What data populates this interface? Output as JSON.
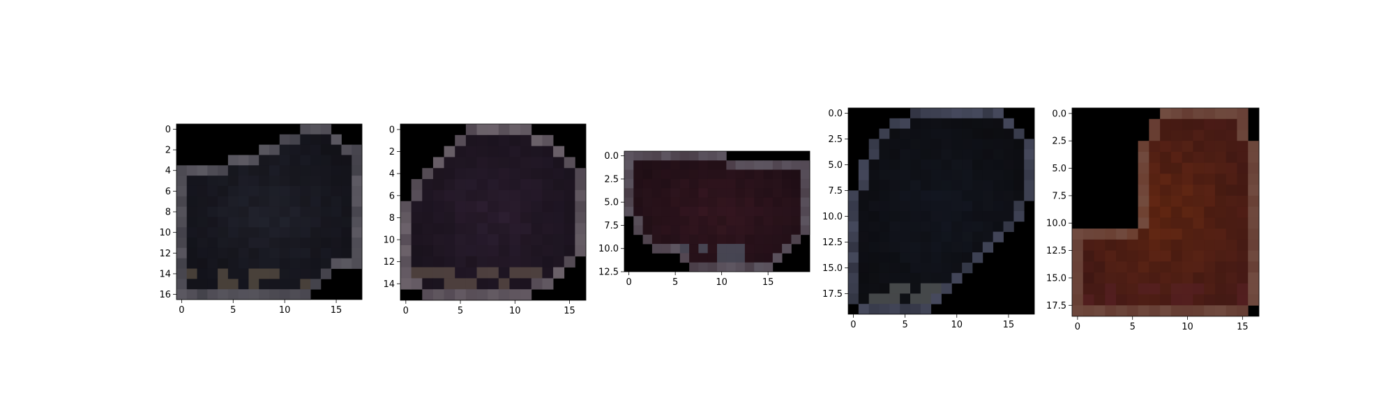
{
  "chart_data": [
    {
      "type": "heatmap",
      "rows": 17,
      "cols": 18,
      "xlim": [
        -0.5,
        17.5
      ],
      "ylim": [
        16.5,
        -0.5
      ],
      "x_ticks": [
        0,
        5,
        10,
        15
      ],
      "x_tick_labels": [
        "0",
        "5",
        "10",
        "15"
      ],
      "y_ticks": [
        0,
        2,
        4,
        6,
        8,
        10,
        12,
        14,
        16
      ],
      "y_tick_labels": [
        "0",
        "2",
        "4",
        "6",
        "8",
        "10",
        "12",
        "14",
        "16"
      ],
      "mask": [
        "000000000000111000",
        "000000000011111100",
        "000000001111111111",
        "000001111111111111",
        "111111111111111111",
        "111111111111111111",
        "111111111111111111",
        "111111111111111111",
        "111111111111111111",
        "111111111111111111",
        "111111111111111111",
        "111111111111111111",
        "111111111111111111",
        "111111111111111111",
        "111111111111111000",
        "111111111111110000",
        "111111111111100000"
      ],
      "colors": {
        "base": "#14141c",
        "center": "#232530",
        "dark": "#0d0b0e",
        "edge": "#6a6770",
        "accent": "#6b5e4e",
        "background": "#000000"
      }
    },
    {
      "type": "heatmap",
      "rows": 16,
      "cols": 17,
      "xlim": [
        -0.5,
        16.5
      ],
      "ylim": [
        15.5,
        -0.5
      ],
      "x_ticks": [
        0,
        5,
        10,
        15
      ],
      "x_tick_labels": [
        "0",
        "5",
        "10",
        "15"
      ],
      "y_ticks": [
        0,
        2,
        4,
        6,
        8,
        10,
        12,
        14
      ],
      "y_tick_labels": [
        "0",
        "2",
        "4",
        "6",
        "8",
        "10",
        "12",
        "14"
      ],
      "mask": [
        "00000011111100000",
        "00000111111111000",
        "00001111111111100",
        "00011111111111110",
        "00111111111111111",
        "01111111111111111",
        "01111111111111111",
        "11111111111111111",
        "11111111111111111",
        "11111111111111111",
        "11111111111111111",
        "11111111111111111",
        "11111111111111110",
        "11111111111111100",
        "11111111111111000",
        "00111111111100000"
      ],
      "colors": {
        "base": "#1c1420",
        "center": "#2e1f33",
        "dark": "#120c12",
        "edge": "#7a7078",
        "accent": "#6e5d52",
        "background": "#000000"
      }
    },
    {
      "type": "heatmap",
      "rows": 13,
      "cols": 20,
      "xlim": [
        -0.5,
        19.5
      ],
      "ylim": [
        12.5,
        -0.5
      ],
      "x_ticks": [
        0,
        5,
        10,
        15
      ],
      "x_tick_labels": [
        "0",
        "5",
        "10",
        "15"
      ],
      "y_ticks": [
        0,
        2.5,
        5,
        7.5,
        10,
        12.5
      ],
      "y_tick_labels": [
        "0.0",
        "2.5",
        "5.0",
        "7.5",
        "10.0",
        "12.5"
      ],
      "mask": [
        "11111111111000000000",
        "11111111111111111111",
        "11111111111111111111",
        "11111111111111111111",
        "11111111111111111111",
        "11111111111111111111",
        "11111111111111111111",
        "01111111111111111111",
        "01111111111111111111",
        "00111111111111111110",
        "00011111111111111100",
        "00000011111111111000",
        "00000001111111110000"
      ],
      "colors": {
        "base": "#231018",
        "center": "#3a1822",
        "dark": "#160a10",
        "edge": "#6a6470",
        "accent": "#5d6878",
        "background": "#000000"
      }
    },
    {
      "type": "heatmap",
      "rows": 20,
      "cols": 18,
      "xlim": [
        -0.5,
        17.5
      ],
      "ylim": [
        19.5,
        -0.5
      ],
      "x_ticks": [
        0,
        5,
        10,
        15
      ],
      "x_tick_labels": [
        "0",
        "5",
        "10",
        "15"
      ],
      "y_ticks": [
        0,
        2.5,
        5,
        7.5,
        10,
        12.5,
        15,
        17.5
      ],
      "y_tick_labels": [
        "0.0",
        "2.5",
        "5.0",
        "7.5",
        "10.0",
        "12.5",
        "15.0",
        "17.5"
      ],
      "mask": [
        "000000111111111000",
        "000011111111111100",
        "000111111111111110",
        "001111111111111111",
        "001111111111111111",
        "011111111111111111",
        "011111111111111111",
        "011111111111111111",
        "111111111111111111",
        "111111111111111110",
        "111111111111111110",
        "111111111111111100",
        "111111111111111000",
        "111111111111110000",
        "111111111111100000",
        "111111111111000000",
        "111111111110000000",
        "111111111100000000",
        "111111111000000000",
        "011111110000000000"
      ],
      "colors": {
        "base": "#0e0f14",
        "center": "#141823",
        "dark": "#08080a",
        "edge": "#50546a",
        "accent": "#6a6e6e",
        "background": "#000000"
      }
    },
    {
      "type": "heatmap",
      "rows": 19,
      "cols": 17,
      "xlim": [
        -0.5,
        16.5
      ],
      "ylim": [
        18.5,
        -0.5
      ],
      "x_ticks": [
        0,
        5,
        10,
        15
      ],
      "x_tick_labels": [
        "0",
        "5",
        "10",
        "15"
      ],
      "y_ticks": [
        0,
        2.5,
        5,
        7.5,
        10,
        12.5,
        15,
        17.5
      ],
      "y_tick_labels": [
        "0.0",
        "2.5",
        "5.0",
        "7.5",
        "10.0",
        "12.5",
        "15.0",
        "17.5"
      ],
      "mask": [
        "00000000111111110",
        "00000001111111110",
        "00000001111111110",
        "00000011111111111",
        "00000011111111111",
        "00000011111111111",
        "00000011111111111",
        "00000011111111111",
        "00000011111111111",
        "00000011111111111",
        "00000011111111111",
        "11111111111111111",
        "11111111111111111",
        "11111111111111111",
        "11111111111111111",
        "11111111111111111",
        "11111111111111111",
        "11111111111111111",
        "11111111111111110"
      ],
      "colors": {
        "base": "#4a1c16",
        "center": "#6a2a12",
        "dark": "#2a0e0c",
        "edge": "#7a5548",
        "accent": "#5c2226",
        "background": "#000000"
      }
    }
  ]
}
